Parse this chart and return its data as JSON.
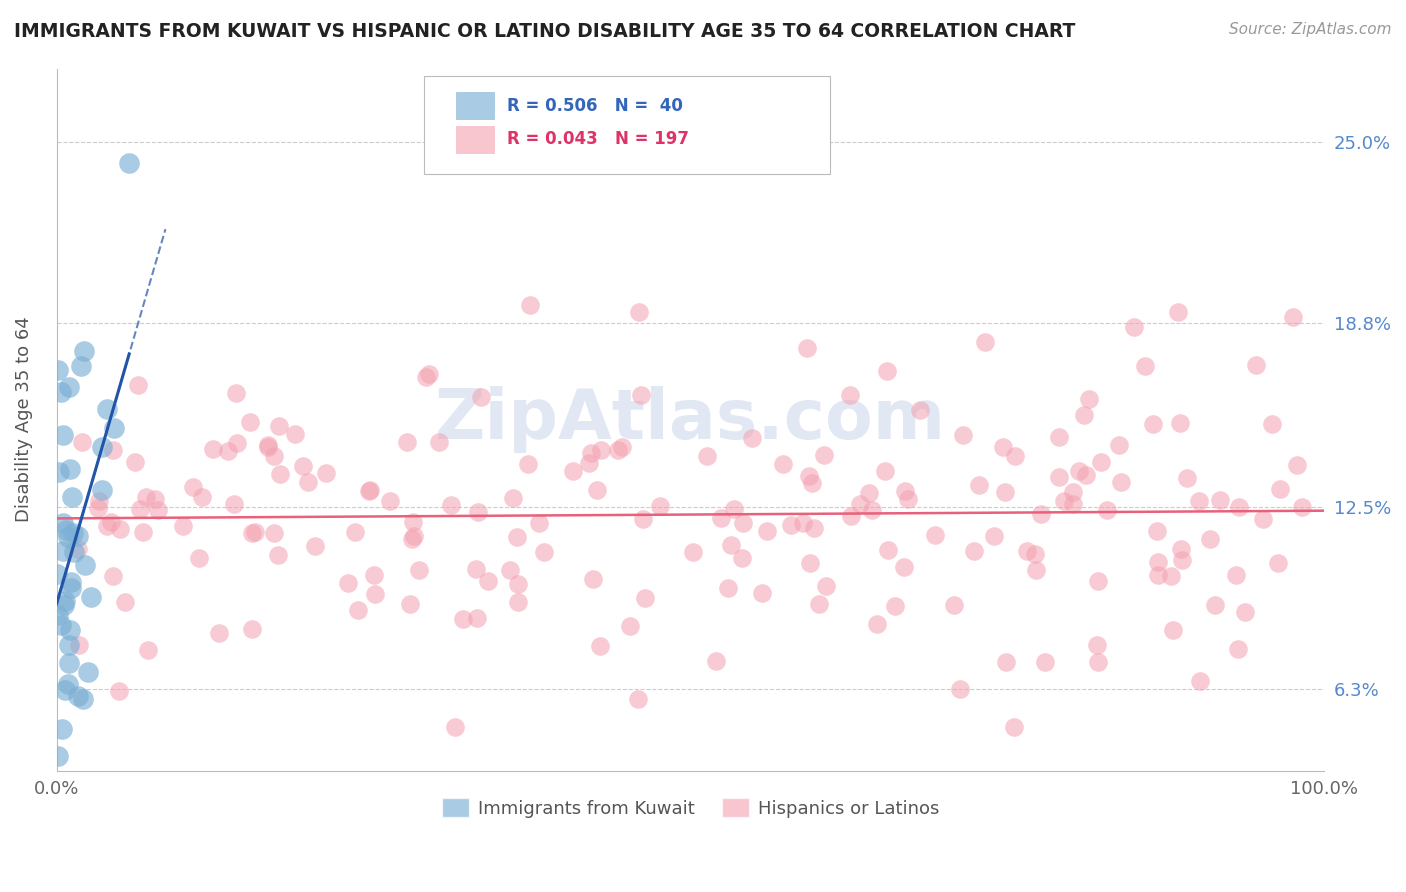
{
  "title": "IMMIGRANTS FROM KUWAIT VS HISPANIC OR LATINO DISABILITY AGE 35 TO 64 CORRELATION CHART",
  "source": "Source: ZipAtlas.com",
  "ylabel": "Disability Age 35 to 64",
  "xlim": [
    0,
    100
  ],
  "ylim": [
    3.5,
    27.5
  ],
  "yticks": [
    6.3,
    12.5,
    18.8,
    25.0
  ],
  "yticklabels": [
    "6.3%",
    "12.5%",
    "18.8%",
    "25.0%"
  ],
  "xticklabels": [
    "0.0%",
    "100.0%"
  ],
  "blue_color": "#7BAFD4",
  "pink_color": "#F4A0B0",
  "blue_line_color": "#2255AA",
  "pink_line_color": "#E8607A",
  "legend_label_blue": "Immigrants from Kuwait",
  "legend_label_pink": "Hispanics or Latinos",
  "background_color": "#FFFFFF",
  "grid_color": "#CCCCCC",
  "watermark": "ZipAtlas.com"
}
